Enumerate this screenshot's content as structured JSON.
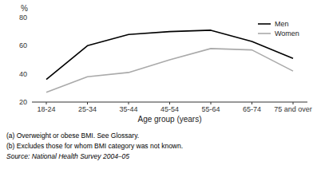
{
  "chart_data": {
    "type": "line",
    "categories": [
      "18-24",
      "25-34",
      "35-44",
      "45-54",
      "55-64",
      "65-74",
      "75 and over"
    ],
    "series": [
      {
        "name": "Men",
        "color": "#000000",
        "values": [
          36,
          60,
          68,
          70,
          71,
          63,
          51
        ]
      },
      {
        "name": "Women",
        "color": "#aaaaaa",
        "values": [
          27,
          38,
          41,
          50,
          58,
          57,
          42
        ]
      }
    ],
    "xlabel": "Age group (years)",
    "ylabel": "%",
    "ylim": [
      20,
      80
    ],
    "yticks": [
      20,
      40,
      60,
      80
    ],
    "grid": false,
    "legend": "upper right",
    "footnotes": [
      "(a)  Overweight or obese BMI. See Glossary.",
      "(b)  Excludes those for whom BMI category was not known."
    ],
    "source": "Source: National Health Survey 2004–05"
  }
}
